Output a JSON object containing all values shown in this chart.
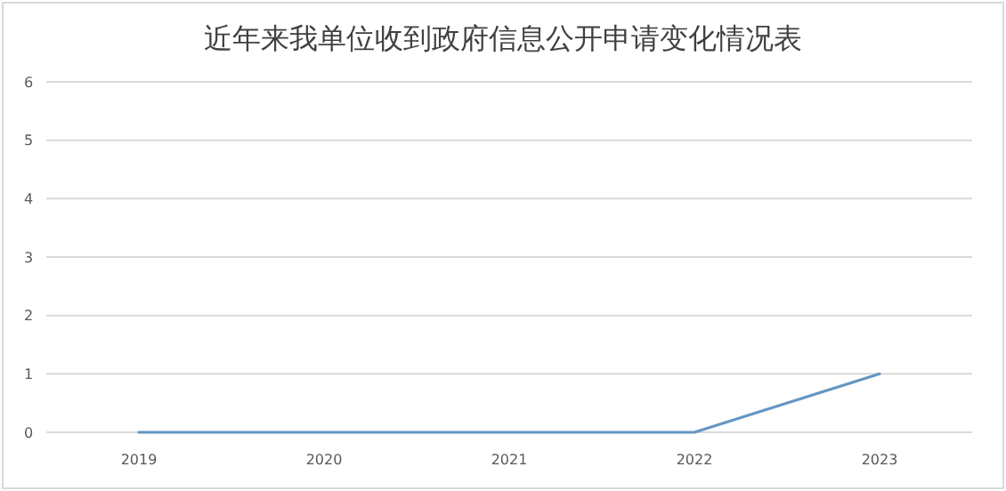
{
  "chart_data": {
    "type": "line",
    "title": "近年来我单位收到政府信息公开申请变化情况表",
    "categories": [
      "2019",
      "2020",
      "2021",
      "2022",
      "2023"
    ],
    "series": [
      {
        "color": "#6496c3",
        "values": [
          0,
          0,
          0,
          0,
          1
        ]
      }
    ],
    "ylim": [
      0,
      6
    ],
    "yticks": [
      0,
      1,
      2,
      3,
      4,
      5,
      6
    ],
    "grid": "y",
    "marker": "none"
  }
}
